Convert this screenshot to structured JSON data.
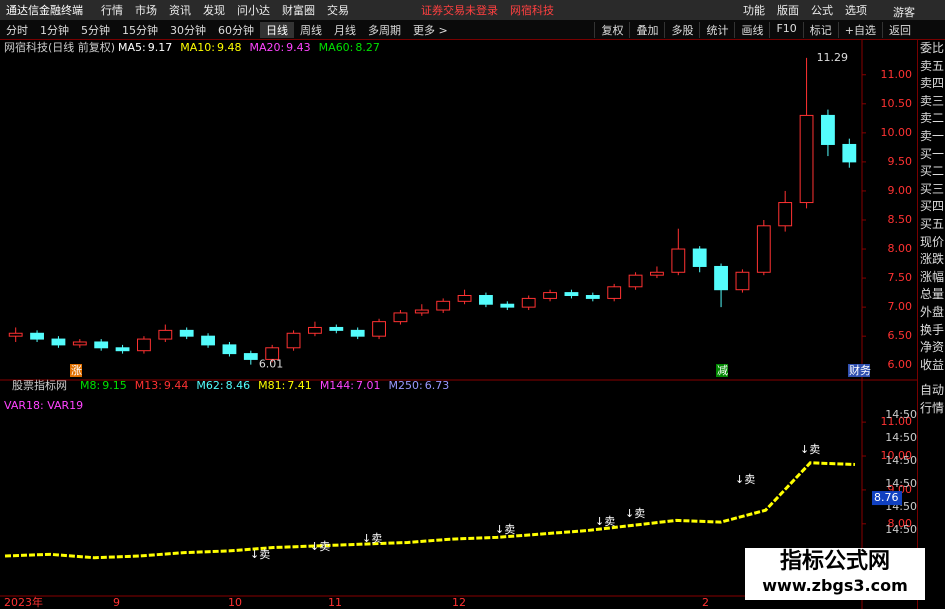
{
  "menu": {
    "app_title": "通达信金融终端",
    "items": [
      "行情",
      "市场",
      "资讯",
      "发现",
      "问小达",
      "财富圈",
      "交易"
    ],
    "notice": "证券交易未登录",
    "stock": "网宿科技",
    "right_items": [
      "功能",
      "版面",
      "公式",
      "选项"
    ]
  },
  "toolbar": {
    "periods": [
      "分时",
      "1分钟",
      "5分钟",
      "15分钟",
      "30分钟",
      "60分钟",
      "日线",
      "周线",
      "月线",
      "多周期",
      "更多 >"
    ],
    "tools": [
      "复权",
      "叠加",
      "多股",
      "统计",
      "画线",
      "F10",
      "标记",
      "+自选",
      "返回"
    ]
  },
  "user": "游客",
  "side_panel": {
    "labels": [
      "委比",
      "卖五",
      "卖四",
      "卖三",
      "卖二",
      "卖一",
      "买一",
      "买二",
      "买三",
      "买四",
      "买五",
      "现价",
      "涨跌",
      "涨幅",
      "总量",
      "外盘",
      "换手",
      "净资",
      "收益"
    ],
    "bottom": [
      "自动",
      "行情"
    ]
  },
  "chart_data": [
    {
      "type": "candlestick",
      "title": "网宿科技(日线 前复权)",
      "legend": [
        {
          "name": "MA5:",
          "value": 9.17,
          "color": "#ffffff"
        },
        {
          "name": "MA10:",
          "value": 9.48,
          "color": "#ffff00"
        },
        {
          "name": "MA20:",
          "value": 9.43,
          "color": "#ff44ff"
        },
        {
          "name": "MA60:",
          "value": 8.27,
          "color": "#00e000"
        }
      ],
      "up_color": "#ff3232",
      "down_color": "#54fcfc",
      "open": [
        6.5,
        6.55,
        6.45,
        6.35,
        6.4,
        6.3,
        6.25,
        6.45,
        6.6,
        6.5,
        6.35,
        6.2,
        6.1,
        6.3,
        6.55,
        6.65,
        6.6,
        6.5,
        6.75,
        6.9,
        6.95,
        7.1,
        7.2,
        7.05,
        7.0,
        7.15,
        7.25,
        7.2,
        7.15,
        7.35,
        7.55,
        7.6,
        8.0,
        7.7,
        7.3,
        7.6,
        8.4,
        8.8,
        10.3,
        9.8
      ],
      "high": [
        6.65,
        6.6,
        6.5,
        6.45,
        6.45,
        6.35,
        6.5,
        6.7,
        6.65,
        6.55,
        6.4,
        6.25,
        6.35,
        6.6,
        6.75,
        6.7,
        6.65,
        6.8,
        6.95,
        7.05,
        7.15,
        7.3,
        7.25,
        7.1,
        7.2,
        7.3,
        7.3,
        7.25,
        7.4,
        7.6,
        7.7,
        8.35,
        8.05,
        7.75,
        7.65,
        8.5,
        9.0,
        11.29,
        10.4,
        9.9
      ],
      "low": [
        6.4,
        6.4,
        6.3,
        6.3,
        6.25,
        6.2,
        6.2,
        6.4,
        6.45,
        6.3,
        6.15,
        6.01,
        6.05,
        6.25,
        6.5,
        6.55,
        6.45,
        6.45,
        6.7,
        6.85,
        6.9,
        7.05,
        7.0,
        6.95,
        6.95,
        7.1,
        7.15,
        7.1,
        7.1,
        7.3,
        7.5,
        7.55,
        7.6,
        7.0,
        7.25,
        7.55,
        8.3,
        8.7,
        9.6,
        9.4
      ],
      "close": [
        6.55,
        6.45,
        6.35,
        6.4,
        6.3,
        6.25,
        6.45,
        6.6,
        6.5,
        6.35,
        6.2,
        6.1,
        6.3,
        6.55,
        6.65,
        6.6,
        6.5,
        6.75,
        6.9,
        6.95,
        7.1,
        7.2,
        7.05,
        7.0,
        7.15,
        7.25,
        7.2,
        7.15,
        7.35,
        7.55,
        7.6,
        8.0,
        7.7,
        7.3,
        7.6,
        8.4,
        8.8,
        10.3,
        9.8,
        9.5
      ],
      "ylim": [
        5.78,
        11.34
      ],
      "yticks": [
        {
          "value": 11,
          "label": "11.00"
        },
        {
          "value": 10.5,
          "label": "10.50"
        },
        {
          "value": 10,
          "label": "10.00"
        },
        {
          "value": 9.5,
          "label": "9.50"
        },
        {
          "value": 9,
          "label": "9.00"
        },
        {
          "value": 8.5,
          "label": "8.50"
        },
        {
          "value": 8,
          "label": "8.00"
        },
        {
          "value": 7.5,
          "label": "7.50"
        },
        {
          "value": 7,
          "label": "7.00"
        },
        {
          "value": 6.5,
          "label": "6.50"
        },
        {
          "value": 6,
          "label": "6.00"
        }
      ],
      "badges": [
        "涨",
        "减",
        "财务"
      ]
    },
    {
      "type": "line",
      "title": "股票指标网",
      "legend": [
        {
          "name": "M8:",
          "value": 9.15,
          "color": "#00e000"
        },
        {
          "name": "M13:",
          "value": 9.44,
          "color": "#ff3232"
        },
        {
          "name": "M62:",
          "value": 8.46,
          "color": "#54fcfc"
        },
        {
          "name": "M81:",
          "value": 7.41,
          "color": "#ffff00"
        },
        {
          "name": "M144:",
          "value": 7.01,
          "color": "#ff44ff"
        },
        {
          "name": "M250:",
          "value": 6.73,
          "color": "#9999ff"
        }
      ],
      "subtitle": "VAR18: VAR19",
      "color": "#ffff00",
      "values": [
        7.05,
        7.1,
        7.0,
        7.05,
        7.15,
        7.2,
        7.3,
        7.35,
        7.4,
        7.45,
        7.55,
        7.6,
        7.7,
        7.8,
        7.95,
        8.1,
        8.05,
        8.4,
        9.8,
        9.75
      ],
      "ylim": [
        5.9,
        11.8
      ],
      "yticks": [
        {
          "value": 11,
          "label": "11.00"
        },
        {
          "value": 10,
          "label": "10.00"
        },
        {
          "value": 9,
          "label": "9.00"
        },
        {
          "value": 8,
          "label": "8.00"
        }
      ],
      "current_value": 8.76,
      "right_labels": [
        "14:50",
        "14:50",
        "14:50",
        "14:50",
        "14:50",
        "14:50",
        "14:50"
      ],
      "signals": [
        "↓卖",
        "↓卖",
        "↓卖",
        "↓卖",
        "↓卖",
        "↓卖",
        "↓卖",
        "↓卖"
      ],
      "x_labels": [
        "2023年",
        "9",
        "10",
        "11",
        "12",
        "2"
      ]
    }
  ],
  "watermark": {
    "title": "指标公式网",
    "url": "www.zbgs3.com"
  }
}
